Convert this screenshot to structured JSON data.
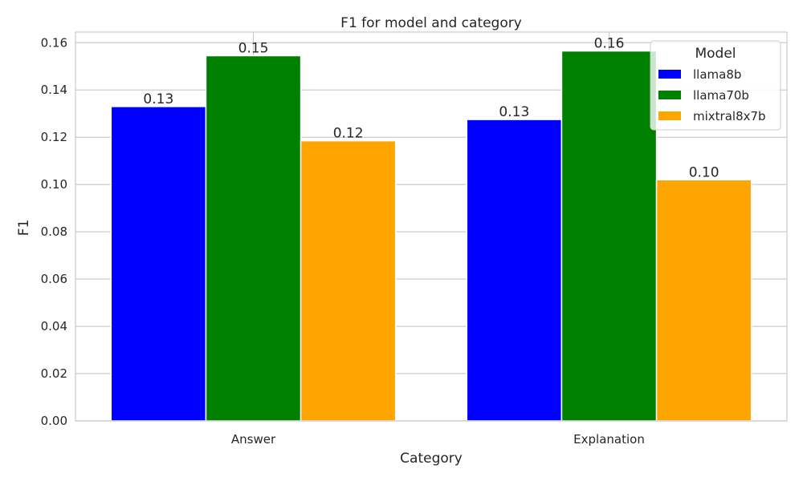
{
  "chart_data": {
    "type": "bar",
    "title": "F1 for model and category",
    "xlabel": "Category",
    "ylabel": "F1",
    "categories": [
      "Answer",
      "Explanation"
    ],
    "series": [
      {
        "name": "llama8b",
        "color": "#0000ff",
        "values": [
          0.133,
          0.1275
        ],
        "labels": [
          "0.13",
          "0.13"
        ]
      },
      {
        "name": "llama70b",
        "color": "#008000",
        "values": [
          0.1545,
          0.1565
        ],
        "labels": [
          "0.15",
          "0.16"
        ]
      },
      {
        "name": "mixtral8x7b",
        "color": "#ffa500",
        "values": [
          0.1185,
          0.102
        ],
        "labels": [
          "0.12",
          "0.10"
        ]
      }
    ],
    "ylim": [
      0,
      0.1645
    ],
    "yticks": [
      "0.00",
      "0.02",
      "0.04",
      "0.06",
      "0.08",
      "0.10",
      "0.12",
      "0.14",
      "0.16"
    ],
    "ytick_values": [
      0,
      0.02,
      0.04,
      0.06,
      0.08,
      0.1,
      0.12,
      0.14,
      0.16
    ],
    "grid": true,
    "legend_title": "Model",
    "legend_position": "top-right"
  }
}
